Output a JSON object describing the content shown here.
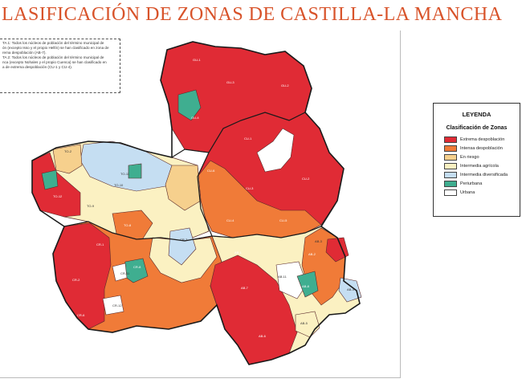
{
  "title": "LASIFICACIÓN DE ZONAS DE CASTILLA-LA MANCHA",
  "notes": [
    "TA 1: Todos los núcleos de población del término municipal de",
    "ón (excepto Isso y el propio Hellín) se han clasificado en zona de",
    "rema despoblación (AB-7).",
    "TA 2: Todos los núcleos de población del término municipal de",
    "nca (excepto Nohales y el propio Cuenca) se han clasificado en",
    "a de extrema despoblación (CU-1 y CU-4)."
  ],
  "legend": {
    "title": "LEYENDA",
    "subtitle": "Clasificación de Zonas",
    "items": [
      {
        "label": "Extrema despoblación",
        "color": "#e02b35"
      },
      {
        "label": "Intensa despoblación",
        "color": "#f07b38"
      },
      {
        "label": "En riesgo",
        "color": "#f6d08d"
      },
      {
        "label": "Intermedia agrícola",
        "color": "#fbf1c2"
      },
      {
        "label": "Intermedia diversificada",
        "color": "#c5def2"
      },
      {
        "label": "Periurbana",
        "color": "#3fae90"
      },
      {
        "label": "Urbana",
        "color": "#ffffff"
      }
    ]
  },
  "zone_labels": [
    "GU-1",
    "GU-2",
    "GU-3",
    "GU-4",
    "CU-1",
    "CU-2",
    "CU-3",
    "CU-4",
    "CU-5",
    "CU-6",
    "TO-12",
    "TO-2",
    "TO-10",
    "TO-11",
    "TO-9",
    "TO-8",
    "CR-3",
    "CR-1",
    "CR-2",
    "CR-8",
    "CR-11",
    "CR-12",
    "CR-6",
    "AB-1",
    "AB-2",
    "AB-3",
    "AB-4",
    "AB-5",
    "AB-6",
    "AB-7",
    "AB-8",
    "AB-11"
  ]
}
